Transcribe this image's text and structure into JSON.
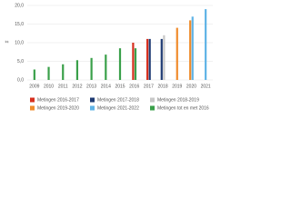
{
  "chart_data": {
    "type": "bar",
    "y_label": "#",
    "categories": [
      "2009",
      "2010",
      "2011",
      "2012",
      "2013",
      "2014",
      "2015",
      "2016",
      "2017",
      "2018",
      "2019",
      "2020",
      "2021"
    ],
    "series": [
      {
        "name": "Metingen 2016-2017",
        "color": "#d7301f",
        "values": [
          null,
          null,
          null,
          null,
          null,
          null,
          null,
          10.0,
          11.0,
          null,
          null,
          null,
          null
        ]
      },
      {
        "name": "Metingen 2017-2018",
        "color": "#1f3b73",
        "values": [
          null,
          null,
          null,
          null,
          null,
          null,
          null,
          null,
          11.0,
          11.0,
          null,
          null,
          null
        ]
      },
      {
        "name": "Metingen 2018-2019",
        "color": "#c8c8c8",
        "values": [
          null,
          null,
          null,
          null,
          null,
          null,
          null,
          null,
          null,
          12.0,
          null,
          null,
          null
        ]
      },
      {
        "name": "Metingen 2019-2020",
        "color": "#f08c2c",
        "values": [
          null,
          null,
          null,
          null,
          null,
          null,
          null,
          null,
          null,
          null,
          14.0,
          16.0,
          null
        ]
      },
      {
        "name": "Metingen 2021-2022",
        "color": "#5fb3e6",
        "values": [
          null,
          null,
          null,
          null,
          null,
          null,
          null,
          null,
          null,
          null,
          null,
          17.0,
          19.0
        ]
      },
      {
        "name": "Metingen tot en met 2016",
        "color": "#3aa04a",
        "values": [
          2.8,
          3.5,
          4.2,
          5.3,
          5.9,
          6.8,
          8.5,
          8.5,
          null,
          null,
          null,
          null,
          null
        ]
      }
    ],
    "ylim": [
      0,
      20
    ],
    "yticks": [
      {
        "value": 0,
        "label": "0,0"
      },
      {
        "value": 5,
        "label": "5,0"
      },
      {
        "value": 10,
        "label": "10,0"
      },
      {
        "value": 15,
        "label": "15,0"
      },
      {
        "value": 20,
        "label": "20,0"
      }
    ],
    "grid": true
  }
}
